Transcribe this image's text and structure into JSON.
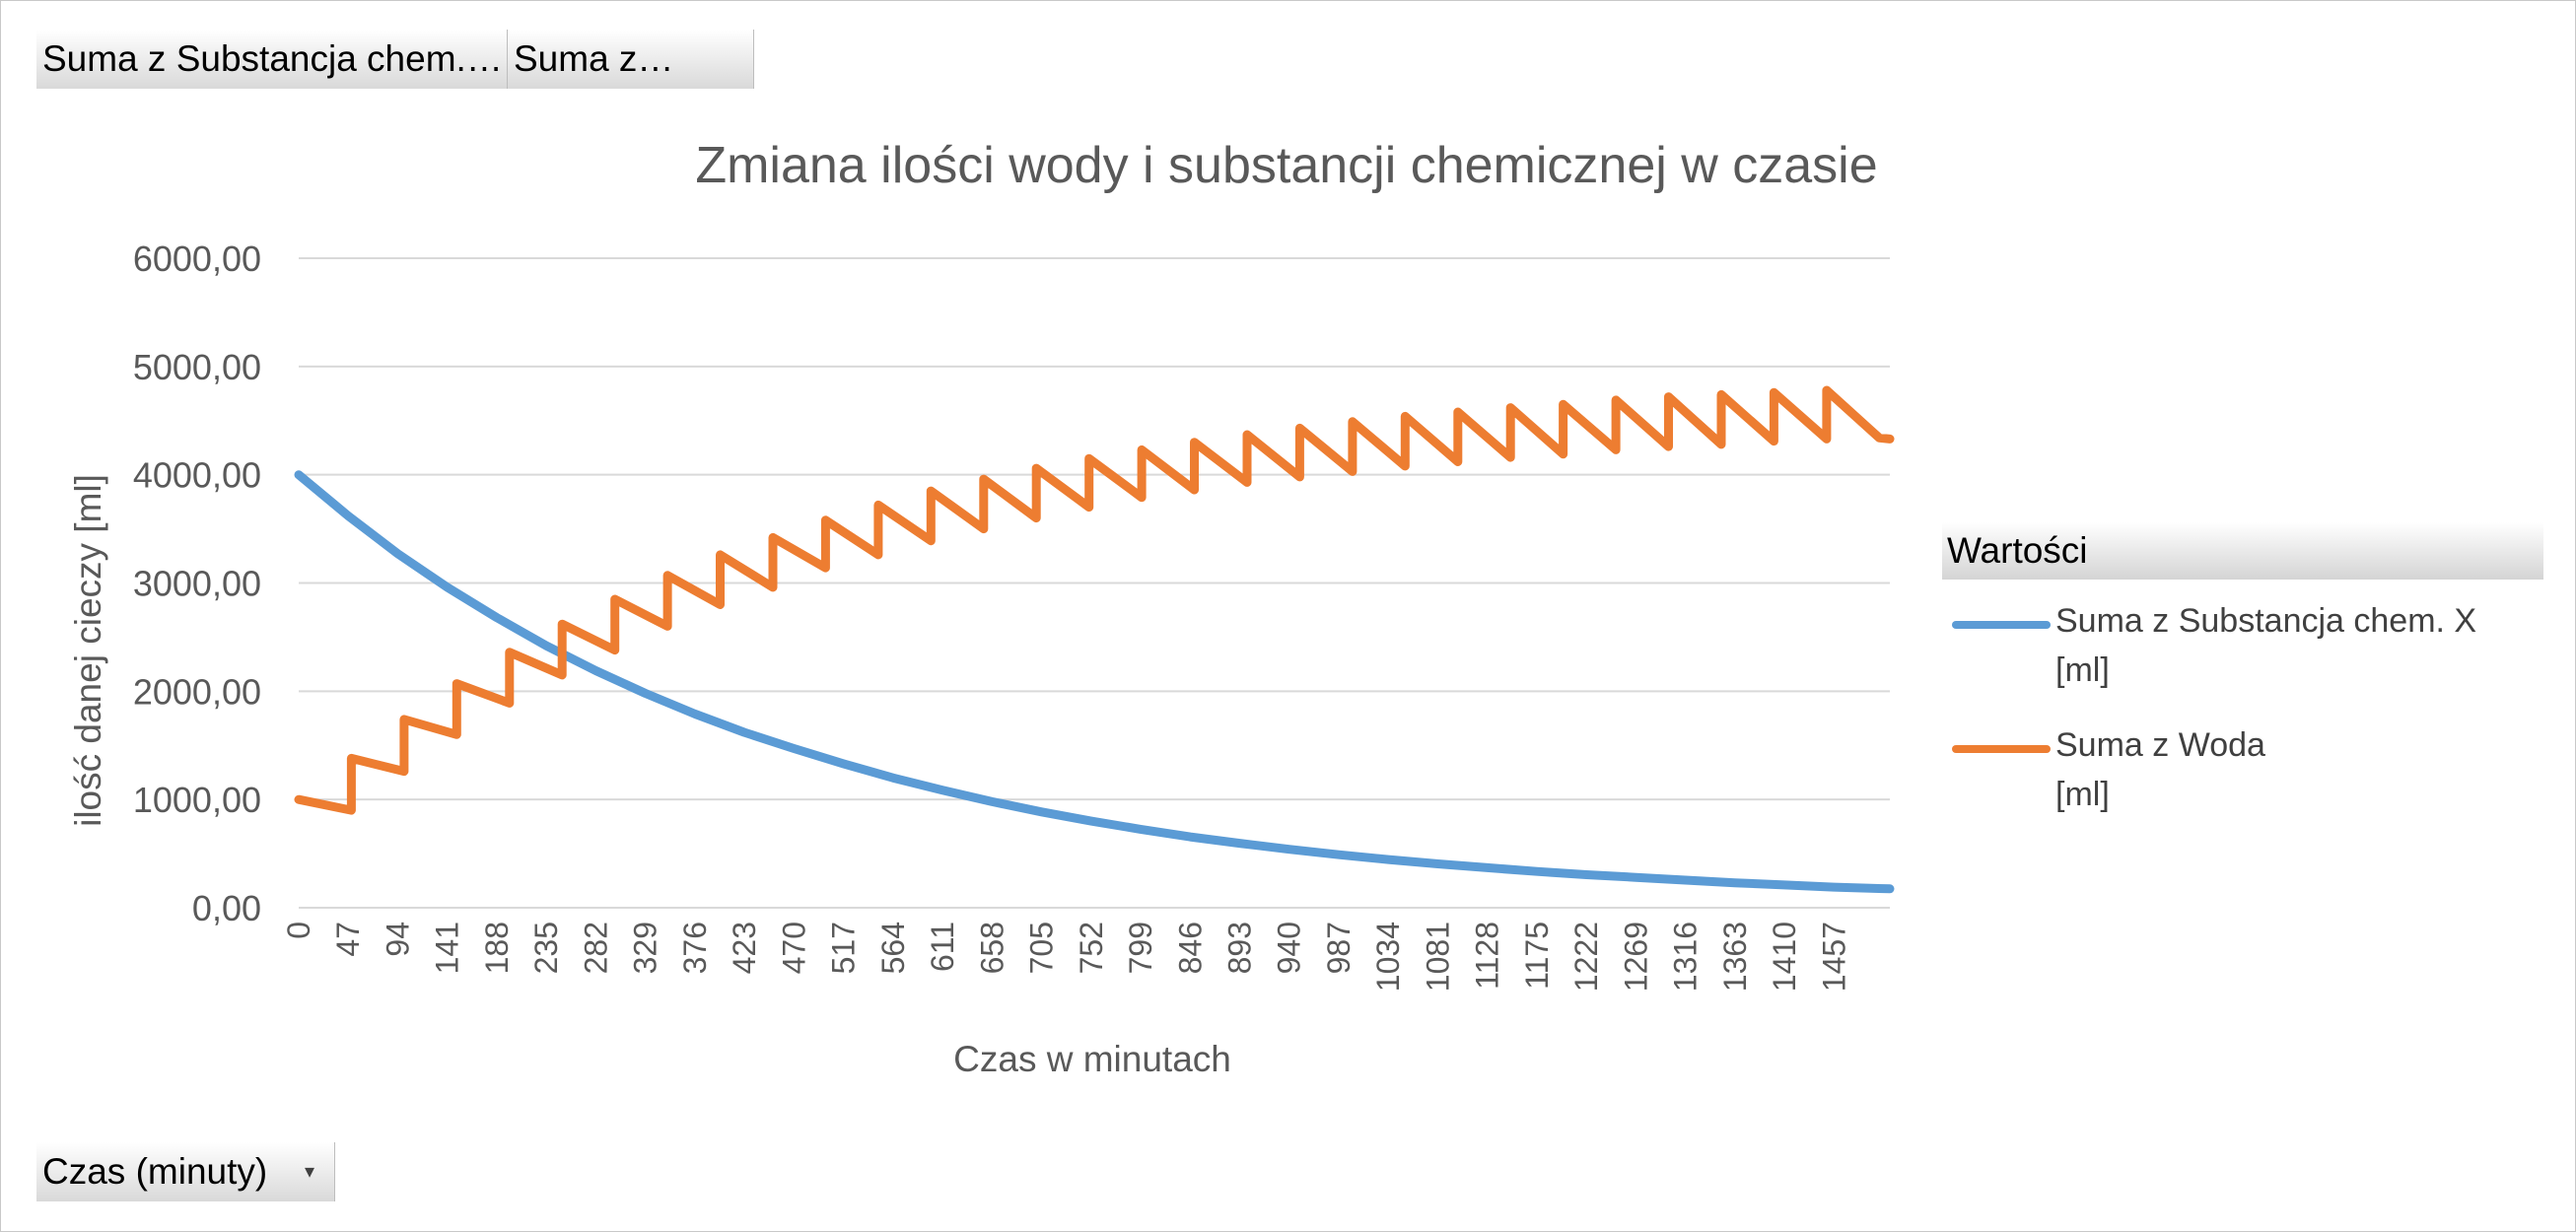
{
  "pivot": {
    "value_buttons": [
      "Suma z Substancja chem.…",
      "Suma z…"
    ],
    "axis_button": "Czas (minuty)",
    "dropdown_icon": "chevron-down-icon"
  },
  "legend": {
    "header": "Wartości",
    "items": [
      {
        "line1": "Suma z Substancja chem. X",
        "line2": "[ml]"
      },
      {
        "line1": "Suma z Woda",
        "line2": "[ml]"
      }
    ]
  },
  "chart_data": {
    "type": "line",
    "title": "Zmiana ilości wody i substancji chemicznej w czasie",
    "xlabel": "Czas w minutach",
    "ylabel": "ilość danej cieczy [ml]",
    "ylim": [
      0,
      6000
    ],
    "yticks": [
      "0,00",
      "1000,00",
      "2000,00",
      "3000,00",
      "4000,00",
      "5000,00",
      "6000,00"
    ],
    "xticks": [
      "0",
      "47",
      "94",
      "141",
      "188",
      "235",
      "282",
      "329",
      "376",
      "423",
      "470",
      "517",
      "564",
      "611",
      "658",
      "705",
      "752",
      "799",
      "846",
      "893",
      "940",
      "987",
      "1034",
      "1081",
      "1128",
      "1175",
      "1222",
      "1269",
      "1316",
      "1363",
      "1410",
      "1457"
    ],
    "xlim": [
      0,
      1510
    ],
    "grid": true,
    "legend_position": "right",
    "colors": {
      "chem": "#5b9bd5",
      "water": "#ed7d31",
      "grid": "#d9d9d9",
      "text": "#595959"
    },
    "series": [
      {
        "name": "Suma z Substancja chem. X [ml]",
        "x": [
          0,
          47,
          94,
          141,
          188,
          235,
          282,
          329,
          376,
          423,
          470,
          517,
          564,
          611,
          658,
          705,
          752,
          799,
          846,
          893,
          940,
          987,
          1034,
          1081,
          1128,
          1175,
          1222,
          1269,
          1316,
          1363,
          1410,
          1457,
          1510
        ],
        "values": [
          4000,
          3620,
          3270,
          2960,
          2680,
          2420,
          2190,
          1980,
          1790,
          1620,
          1470,
          1330,
          1200,
          1085,
          980,
          885,
          800,
          725,
          655,
          595,
          540,
          490,
          445,
          405,
          370,
          335,
          305,
          280,
          255,
          230,
          210,
          190,
          175
        ]
      },
      {
        "name": "Suma z Woda [ml]",
        "x": [
          0,
          50,
          50,
          100,
          100,
          150,
          150,
          200,
          200,
          250,
          250,
          300,
          300,
          350,
          350,
          400,
          400,
          450,
          450,
          500,
          500,
          550,
          550,
          600,
          600,
          650,
          650,
          700,
          700,
          750,
          750,
          800,
          800,
          850,
          850,
          900,
          900,
          950,
          950,
          1000,
          1000,
          1050,
          1050,
          1100,
          1100,
          1150,
          1150,
          1200,
          1200,
          1250,
          1250,
          1300,
          1300,
          1350,
          1350,
          1400,
          1400,
          1450,
          1450,
          1500,
          1510
        ],
        "values": [
          1000,
          900,
          1380,
          1260,
          1740,
          1600,
          2070,
          1890,
          2360,
          2150,
          2620,
          2380,
          2850,
          2600,
          3070,
          2800,
          3260,
          2960,
          3420,
          3140,
          3580,
          3260,
          3720,
          3390,
          3850,
          3500,
          3960,
          3600,
          4060,
          3700,
          4150,
          3790,
          4230,
          3860,
          4300,
          3930,
          4370,
          3980,
          4430,
          4030,
          4490,
          4080,
          4540,
          4120,
          4580,
          4160,
          4620,
          4190,
          4650,
          4230,
          4690,
          4260,
          4720,
          4280,
          4740,
          4310,
          4760,
          4330,
          4780,
          4340,
          4330
        ]
      }
    ]
  }
}
